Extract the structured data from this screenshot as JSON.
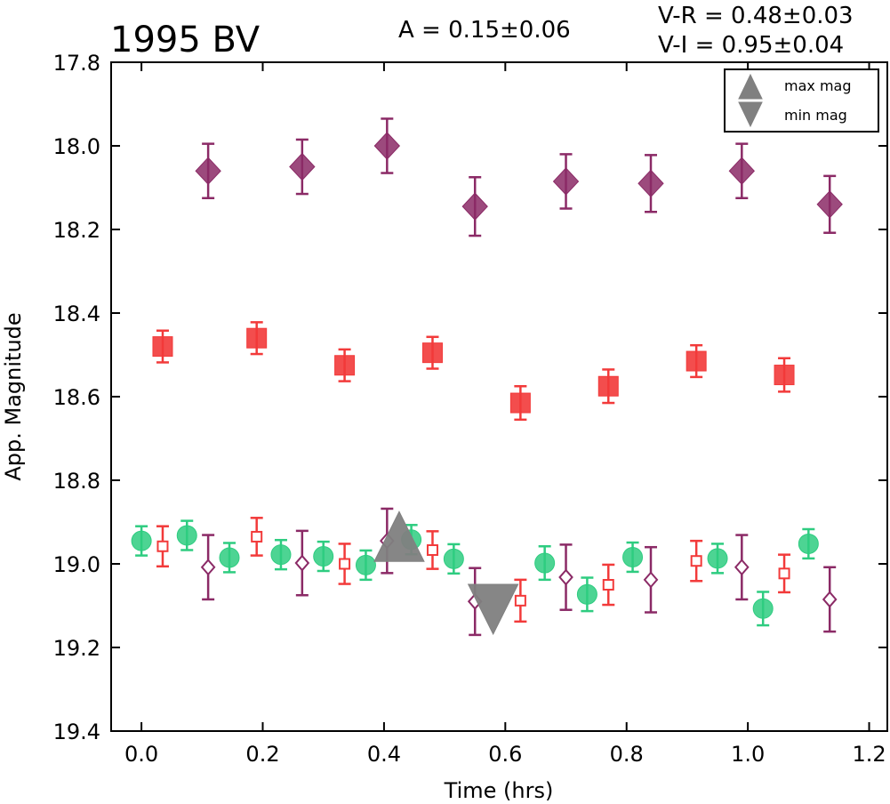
{
  "chart_data": {
    "type": "scatter",
    "title": "1995 BV",
    "annotations": {
      "amplitude": "A  = 0.15±0.06",
      "v_r": "V-R = 0.48±0.03",
      "v_i": "V-I  = 0.95±0.04"
    },
    "xlabel": "Time (hrs)",
    "ylabel": "App. Magnitude",
    "xlim": [
      -0.05,
      1.23
    ],
    "ylim": [
      19.4,
      17.8
    ],
    "y_inverted": true,
    "xticks": [
      "0.0",
      "0.2",
      "0.4",
      "0.6",
      "0.8",
      "1.0",
      "1.2"
    ],
    "yticks": [
      "17.8",
      "18.0",
      "18.2",
      "18.4",
      "18.6",
      "18.8",
      "19.0",
      "19.2",
      "19.4"
    ],
    "legend": {
      "position": "top-right",
      "entries": [
        "max mag",
        "min mag"
      ]
    },
    "series": [
      {
        "marker": "diamond-filled",
        "color": "#8b2a66",
        "x": [
          0.11,
          0.265,
          0.405,
          0.55,
          0.7,
          0.84,
          0.99,
          1.135
        ],
        "y": [
          18.06,
          18.05,
          18.0,
          18.145,
          18.085,
          18.09,
          18.06,
          18.14
        ],
        "err": [
          0.065,
          0.065,
          0.065,
          0.07,
          0.065,
          0.068,
          0.065,
          0.068
        ]
      },
      {
        "marker": "square-filled",
        "color": "#f23a3a",
        "x": [
          0.035,
          0.19,
          0.335,
          0.48,
          0.625,
          0.77,
          0.915,
          1.06
        ],
        "y": [
          18.48,
          18.46,
          18.525,
          18.495,
          18.615,
          18.575,
          18.515,
          18.548
        ],
        "err": [
          0.038,
          0.038,
          0.038,
          0.038,
          0.04,
          0.04,
          0.038,
          0.04
        ]
      },
      {
        "marker": "circle-filled",
        "color": "#2ecc80",
        "x": [
          0.0,
          0.075,
          0.145,
          0.23,
          0.3,
          0.37,
          0.445,
          0.515,
          0.665,
          0.735,
          0.81,
          0.95,
          1.025,
          1.1
        ],
        "y": [
          18.945,
          18.932,
          18.985,
          18.978,
          18.982,
          19.003,
          18.942,
          18.988,
          18.998,
          19.073,
          18.984,
          18.987,
          19.107,
          18.952
        ],
        "err": [
          0.035,
          0.035,
          0.035,
          0.035,
          0.035,
          0.035,
          0.035,
          0.035,
          0.04,
          0.04,
          0.035,
          0.035,
          0.04,
          0.035
        ]
      },
      {
        "marker": "square-open",
        "color": "#f23a3a",
        "x": [
          0.035,
          0.19,
          0.335,
          0.48,
          0.625,
          0.77,
          0.915,
          1.06
        ],
        "y": [
          18.958,
          18.935,
          19.0,
          18.967,
          19.088,
          19.05,
          18.993,
          19.023
        ],
        "err": [
          0.048,
          0.045,
          0.048,
          0.045,
          0.05,
          0.048,
          0.048,
          0.045
        ]
      },
      {
        "marker": "diamond-open",
        "color": "#8b2a66",
        "x": [
          0.11,
          0.265,
          0.405,
          0.55,
          0.7,
          0.84,
          0.99,
          1.135
        ],
        "y": [
          19.008,
          18.998,
          18.945,
          19.09,
          19.032,
          19.038,
          19.008,
          19.085
        ],
        "err": [
          0.077,
          0.077,
          0.077,
          0.08,
          0.078,
          0.078,
          0.077,
          0.077
        ]
      },
      {
        "marker": "triangle-up",
        "color": "#808080",
        "x": [
          0.425
        ],
        "y": [
          18.958
        ]
      },
      {
        "marker": "triangle-down",
        "color": "#808080",
        "x": [
          0.58
        ],
        "y": [
          19.085
        ]
      }
    ]
  }
}
